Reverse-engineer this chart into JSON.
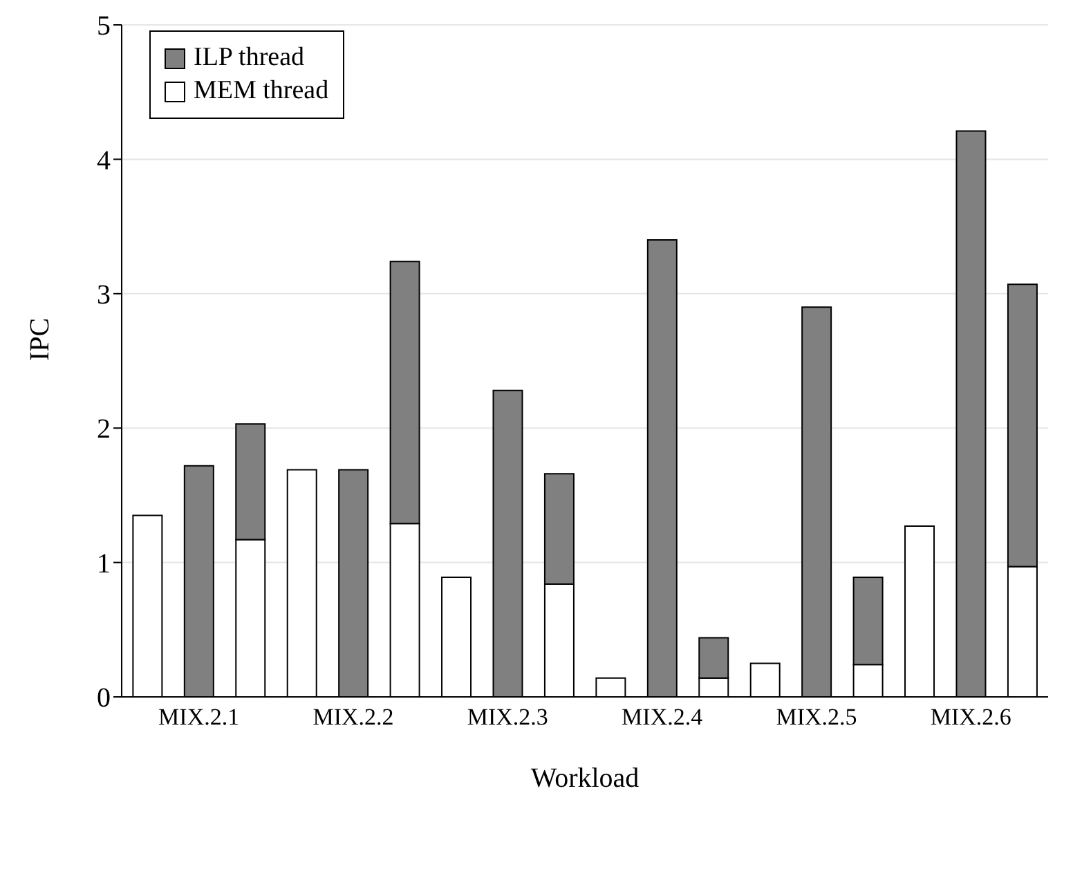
{
  "chart_data": {
    "type": "bar",
    "xlabel": "Workload",
    "ylabel": "IPC",
    "categories": [
      null,
      "MIX.2.1",
      null,
      null,
      "MIX.2.2",
      null,
      null,
      "MIX.2.3",
      null,
      null,
      "MIX.2.4",
      null,
      null,
      "MIX.2.5",
      null,
      null,
      "MIX.2.6",
      null
    ],
    "stacked": true,
    "series": [
      {
        "name": "MEM thread",
        "color": "#ffffff",
        "values": [
          1.35,
          null,
          1.17,
          1.69,
          null,
          1.29,
          0.89,
          null,
          0.84,
          0.14,
          null,
          0.14,
          0.25,
          null,
          0.24,
          1.27,
          null,
          0.97
        ]
      },
      {
        "name": "ILP thread",
        "color": "#808080",
        "values": [
          null,
          1.72,
          0.86,
          null,
          1.69,
          1.95,
          null,
          2.28,
          0.82,
          null,
          3.4,
          0.3,
          null,
          2.9,
          0.65,
          null,
          4.21,
          2.1
        ]
      }
    ],
    "ylim": [
      0,
      5
    ],
    "yticks": [
      0,
      1,
      2,
      3,
      4,
      5
    ],
    "grid": "y",
    "legend": "top left"
  }
}
